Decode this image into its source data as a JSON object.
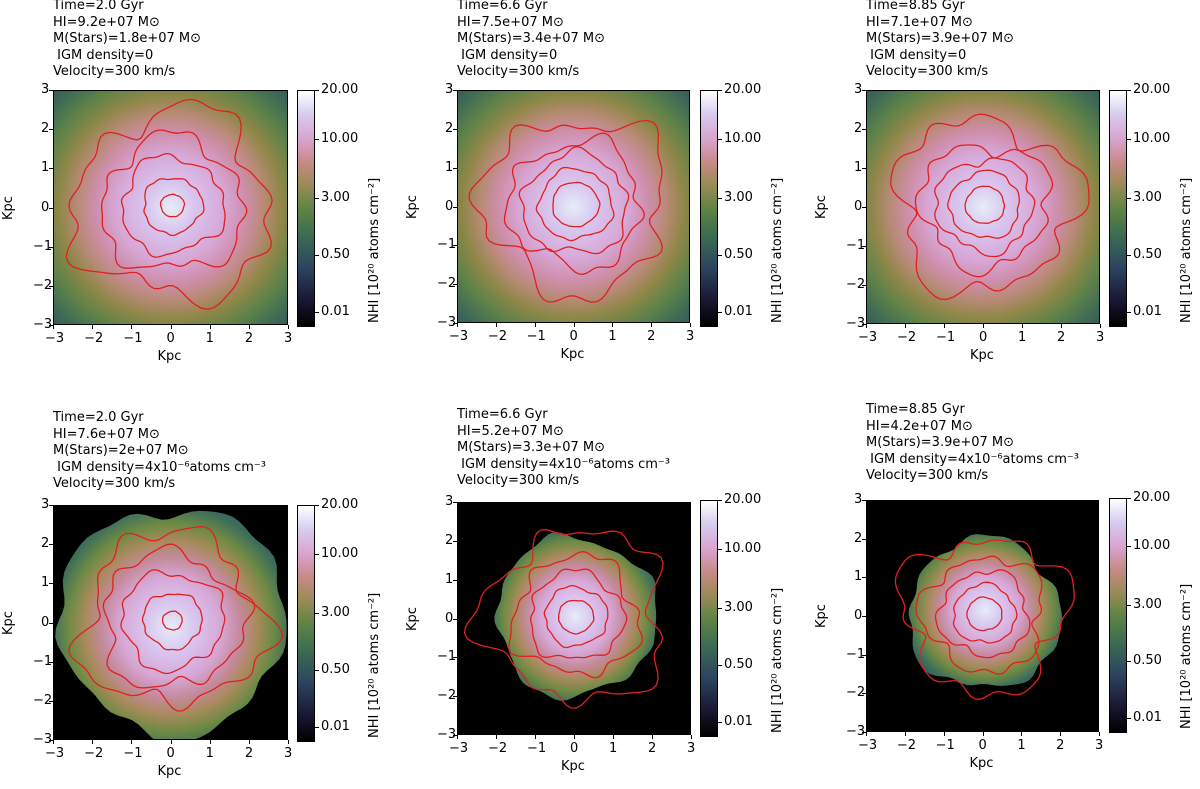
{
  "chart_data": [
    {
      "type": "heatmap",
      "panel": "top-left",
      "annotation": [
        "Time=2.0 Gyr",
        "HI=9.2e+07 M⊙",
        "M(Stars)=1.8e+07 M⊙",
        " IGM density=0",
        "Velocity=300 km/s"
      ],
      "time_gyr": 2.0,
      "hi_mass": 92000000.0,
      "stellar_mass": 18000000.0,
      "igm_density": 0,
      "velocity_kms": 300,
      "xlabel": "Kpc",
      "ylabel": "Kpc",
      "xlim": [
        -3,
        3
      ],
      "ylim": [
        -3,
        3
      ],
      "xticks": [
        "−3",
        "−2",
        "−1",
        "0",
        "1",
        "2",
        "3"
      ],
      "yticks": [
        "3",
        "2",
        "1",
        "0",
        "−1",
        "−2",
        "−3"
      ],
      "colorbar": {
        "label": "NHI [10²⁰ atoms cm⁻²]",
        "ticks": [
          "20.00",
          "10.00",
          "3.00",
          "0.50",
          "0.01"
        ],
        "range": [
          0.01,
          20
        ]
      },
      "contour_color": "#e02020",
      "contour_radii_kpc": [
        0.3,
        0.75,
        1.3,
        1.8,
        2.5
      ]
    },
    {
      "type": "heatmap",
      "panel": "top-middle",
      "annotation": [
        "Time=6.6 Gyr",
        "HI=7.5e+07 M⊙",
        "M(Stars)=3.4e+07 M⊙",
        " IGM density=0",
        "Velocity=300 km/s"
      ],
      "time_gyr": 6.6,
      "hi_mass": 75000000.0,
      "stellar_mass": 34000000.0,
      "igm_density": 0,
      "velocity_kms": 300,
      "xlabel": "Kpc",
      "ylabel": "Kpc",
      "xlim": [
        -3,
        3
      ],
      "ylim": [
        -3,
        3
      ],
      "xticks": [
        "−3",
        "−2",
        "−1",
        "0",
        "1",
        "2",
        "3"
      ],
      "yticks": [
        "3",
        "2",
        "1",
        "0",
        "−1",
        "−2",
        "−3"
      ],
      "colorbar": {
        "label": "NHI [10²⁰ atoms cm⁻²]",
        "ticks": [
          "20.00",
          "10.00",
          "3.00",
          "0.50",
          "0.01"
        ],
        "range": [
          0.01,
          20
        ]
      },
      "contour_color": "#e02020",
      "contour_radii_kpc": [
        0.6,
        0.95,
        1.35,
        1.7,
        2.35
      ]
    },
    {
      "type": "heatmap",
      "panel": "top-right",
      "annotation": [
        "Time=8.85 Gyr",
        "HI=7.1e+07 M⊙",
        "M(Stars)=3.9e+07 M⊙",
        " IGM density=0",
        "Velocity=300 km/s"
      ],
      "time_gyr": 8.85,
      "hi_mass": 71000000.0,
      "stellar_mass": 39000000.0,
      "igm_density": 0,
      "velocity_kms": 300,
      "xlabel": "Kpc",
      "ylabel": "Kpc",
      "xlim": [
        -3,
        3
      ],
      "ylim": [
        -3,
        3
      ],
      "xticks": [
        "−3",
        "−2",
        "−1",
        "0",
        "1",
        "2",
        "3"
      ],
      "yticks": [
        "3",
        "2",
        "1",
        "0",
        "−1",
        "−2",
        "−3"
      ],
      "colorbar": {
        "label": "NHI [10²⁰ atoms cm⁻²]",
        "ticks": [
          "20.00",
          "10.00",
          "3.00",
          "0.50",
          "0.01"
        ],
        "range": [
          0.01,
          20
        ]
      },
      "contour_color": "#e02020",
      "contour_radii_kpc": [
        0.5,
        0.9,
        1.25,
        1.65,
        2.3
      ]
    },
    {
      "type": "heatmap",
      "panel": "bottom-left",
      "annotation": [
        "Time=2.0 Gyr",
        "HI=7.6e+07 M⊙",
        "M(Stars)=2e+07 M⊙",
        " IGM density=4x10⁻⁶atoms cm⁻³",
        "Velocity=300 km/s"
      ],
      "time_gyr": 2.0,
      "hi_mass": 76000000.0,
      "stellar_mass": 20000000.0,
      "igm_density": "4x10⁻⁶",
      "velocity_kms": 300,
      "xlabel": "Kpc",
      "ylabel": "Kpc",
      "xlim": [
        -3,
        3
      ],
      "ylim": [
        -3,
        3
      ],
      "xticks": [
        "−3",
        "−2",
        "−1",
        "0",
        "1",
        "2",
        "3"
      ],
      "yticks": [
        "3",
        "2",
        "1",
        "0",
        "−1",
        "−2",
        "−3"
      ],
      "colorbar": {
        "label": "NHI [10²⁰ atoms cm⁻²]",
        "ticks": [
          "20.00",
          "10.00",
          "3.00",
          "0.50",
          "0.01"
        ],
        "range": [
          0.01,
          20
        ]
      },
      "contour_color": "#e02020",
      "contour_radii_kpc": [
        0.25,
        0.75,
        1.3,
        1.8,
        2.3
      ]
    },
    {
      "type": "heatmap",
      "panel": "bottom-middle",
      "annotation": [
        "Time=6.6 Gyr",
        "HI=5.2e+07 M⊙",
        "M(Stars)=3.3e+07 M⊙",
        " IGM density=4x10⁻⁶atoms cm⁻³",
        "Velocity=300 km/s"
      ],
      "time_gyr": 6.6,
      "hi_mass": 52000000.0,
      "stellar_mass": 33000000.0,
      "igm_density": "4x10⁻⁶",
      "velocity_kms": 300,
      "xlabel": "Kpc",
      "ylabel": "Kpc",
      "xlim": [
        -3,
        3
      ],
      "ylim": [
        -3,
        3
      ],
      "xticks": [
        "−3",
        "−2",
        "−1",
        "0",
        "1",
        "2",
        "3"
      ],
      "yticks": [
        "3",
        "2",
        "1",
        "0",
        "−1",
        "−2",
        "−3"
      ],
      "colorbar": {
        "label": "NHI [10²⁰ atoms cm⁻²]",
        "ticks": [
          "20.00",
          "10.00",
          "3.00",
          "0.50",
          "0.01"
        ],
        "range": [
          0.01,
          20
        ]
      },
      "contour_color": "#e02020",
      "contour_radii_kpc": [
        0.45,
        0.8,
        1.2,
        1.6,
        2.3
      ]
    },
    {
      "type": "heatmap",
      "panel": "bottom-right",
      "annotation": [
        "Time=8.85 Gyr",
        "HI=4.2e+07 M⊙",
        "M(Stars)=3.9e+07 M⊙",
        " IGM density=4x10⁻⁶atoms cm⁻³",
        "Velocity=300 km/s"
      ],
      "time_gyr": 8.85,
      "hi_mass": 42000000.0,
      "stellar_mass": 39000000.0,
      "igm_density": "4x10⁻⁶",
      "velocity_kms": 300,
      "xlabel": "Kpc",
      "ylabel": "Kpc",
      "xlim": [
        -3,
        3
      ],
      "ylim": [
        -3,
        3
      ],
      "xticks": [
        "−3",
        "−2",
        "−1",
        "0",
        "1",
        "2",
        "3"
      ],
      "yticks": [
        "3",
        "2",
        "1",
        "0",
        "−1",
        "−2",
        "−3"
      ],
      "colorbar": {
        "label": "NHI [10²⁰ atoms cm⁻²]",
        "ticks": [
          "20.00",
          "10.00",
          "3.00",
          "0.50",
          "0.01"
        ],
        "range": [
          0.01,
          20
        ]
      },
      "contour_color": "#e02020",
      "contour_radii_kpc": [
        0.45,
        0.8,
        1.15,
        1.55,
        2.1
      ]
    }
  ]
}
